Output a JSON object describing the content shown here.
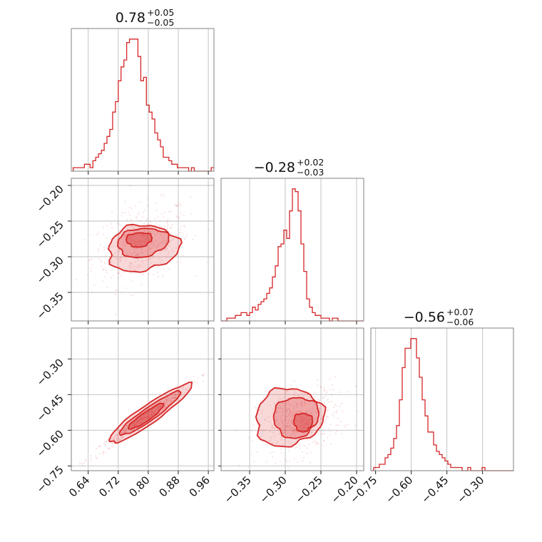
{
  "chart_data": {
    "type": "corner",
    "color": "#d62728",
    "parameters": [
      {
        "median": "0.78",
        "plus": "+0.05",
        "minus": "−0.05"
      },
      {
        "median": "−0.28",
        "plus": "+0.02",
        "minus": "−0.03"
      },
      {
        "median": "−0.56",
        "plus": "+0.07",
        "minus": "−0.06"
      }
    ],
    "axes": {
      "p0": {
        "range": [
          0.595,
          0.975
        ],
        "ticks": [
          0.64,
          0.72,
          0.8,
          0.88,
          0.96
        ],
        "labels": [
          "0.64",
          "0.72",
          "0.80",
          "0.88",
          "0.96"
        ]
      },
      "p1": {
        "range": [
          -0.39,
          -0.19
        ],
        "ticks": [
          -0.35,
          -0.3,
          -0.25,
          -0.2
        ],
        "labels": [
          "−0.35",
          "−0.30",
          "−0.25",
          "−0.20"
        ]
      },
      "p2": {
        "range": [
          -0.77,
          -0.17
        ],
        "ticks": [
          -0.75,
          -0.6,
          -0.45,
          -0.3
        ],
        "labels": [
          "−0.75",
          "−0.60",
          "−0.45",
          "−0.30"
        ]
      },
      "p1_row": {
        "ticks": [
          -0.35,
          -0.3,
          -0.25,
          -0.2
        ],
        "labels": [
          "−0.35",
          "−0.30",
          "−0.25",
          "−0.20"
        ]
      },
      "p2_row": {
        "ticks": [
          -0.75,
          -0.6,
          -0.45,
          -0.3
        ],
        "labels": [
          "−0.75",
          "−0.60",
          "−0.45",
          "−0.30"
        ]
      }
    },
    "histograms": [
      {
        "param": "p0",
        "bin_start": 0.6,
        "bin_width": 0.0075,
        "counts": [
          1,
          1,
          1,
          1,
          2,
          2,
          1,
          3,
          4,
          5,
          6,
          8,
          10,
          12,
          17,
          20,
          26,
          30,
          32,
          37,
          38,
          38,
          38,
          33,
          26,
          27,
          19,
          17,
          15,
          11,
          9,
          7,
          4,
          4,
          3,
          2,
          2,
          1,
          1,
          1,
          1,
          0,
          1,
          0,
          0,
          0,
          0,
          0,
          0,
          1
        ]
      },
      {
        "param": "p1",
        "bin_start": -0.39,
        "bin_width": 0.004,
        "counts": [
          0,
          0,
          1,
          1,
          1,
          2,
          2,
          3,
          3,
          2,
          3,
          5,
          4,
          6,
          7,
          8,
          10,
          12,
          16,
          20,
          27,
          28,
          33,
          30,
          40,
          48,
          47,
          40,
          28,
          18,
          8,
          5,
          3,
          2,
          2,
          1,
          1,
          1,
          0,
          1,
          1,
          0,
          0,
          0,
          0,
          0,
          0,
          0,
          0,
          0
        ]
      },
      {
        "param": "p2",
        "bin_start": -0.77,
        "bin_width": 0.012,
        "counts": [
          0,
          1,
          1,
          2,
          2,
          4,
          5,
          7,
          10,
          14,
          22,
          32,
          38,
          38,
          41,
          41,
          35,
          29,
          22,
          17,
          12,
          12,
          8,
          6,
          5,
          4,
          3,
          2,
          1,
          1,
          1,
          1,
          0,
          0,
          1,
          0,
          0,
          0,
          0,
          1,
          0,
          0,
          0,
          0,
          0,
          0,
          0,
          0,
          0,
          0
        ]
      }
    ],
    "density_levels": [
      "outer",
      "middle",
      "inner"
    ],
    "scatter_style": "faint points outside outermost contour",
    "grid": true
  }
}
